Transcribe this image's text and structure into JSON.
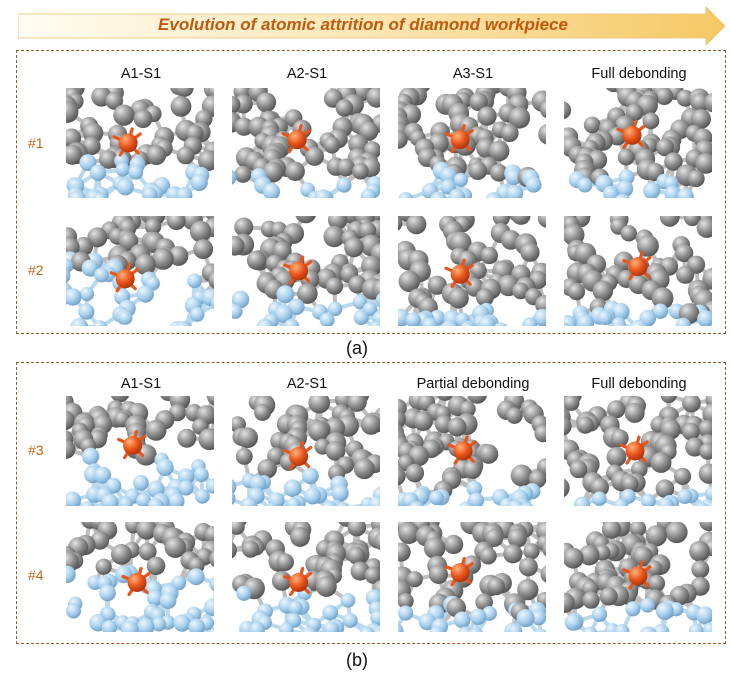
{
  "banner": {
    "title": "Evolution of atomic attrition of diamond workpiece"
  },
  "panel_a": {
    "columns": [
      "A1-S1",
      "A2-S1",
      "A3-S1",
      "Full debonding"
    ],
    "rows": [
      "#1",
      "#2"
    ],
    "caption": "(a)"
  },
  "panel_b": {
    "columns": [
      "A1-S1",
      "A2-S1",
      "Partial debonding",
      "Full debonding"
    ],
    "rows": [
      "#3",
      "#4"
    ],
    "caption": "(b)"
  },
  "colors": {
    "arrow_light": "#fdf6e4",
    "arrow_dark": "#f5cf7a",
    "label_orange": "#c0661b",
    "abrasive_atom": "#8c8c8c",
    "workpiece_atom": "#a9d1ee",
    "tracked_atom": "#e8541a",
    "border": "#9a5a2a"
  }
}
